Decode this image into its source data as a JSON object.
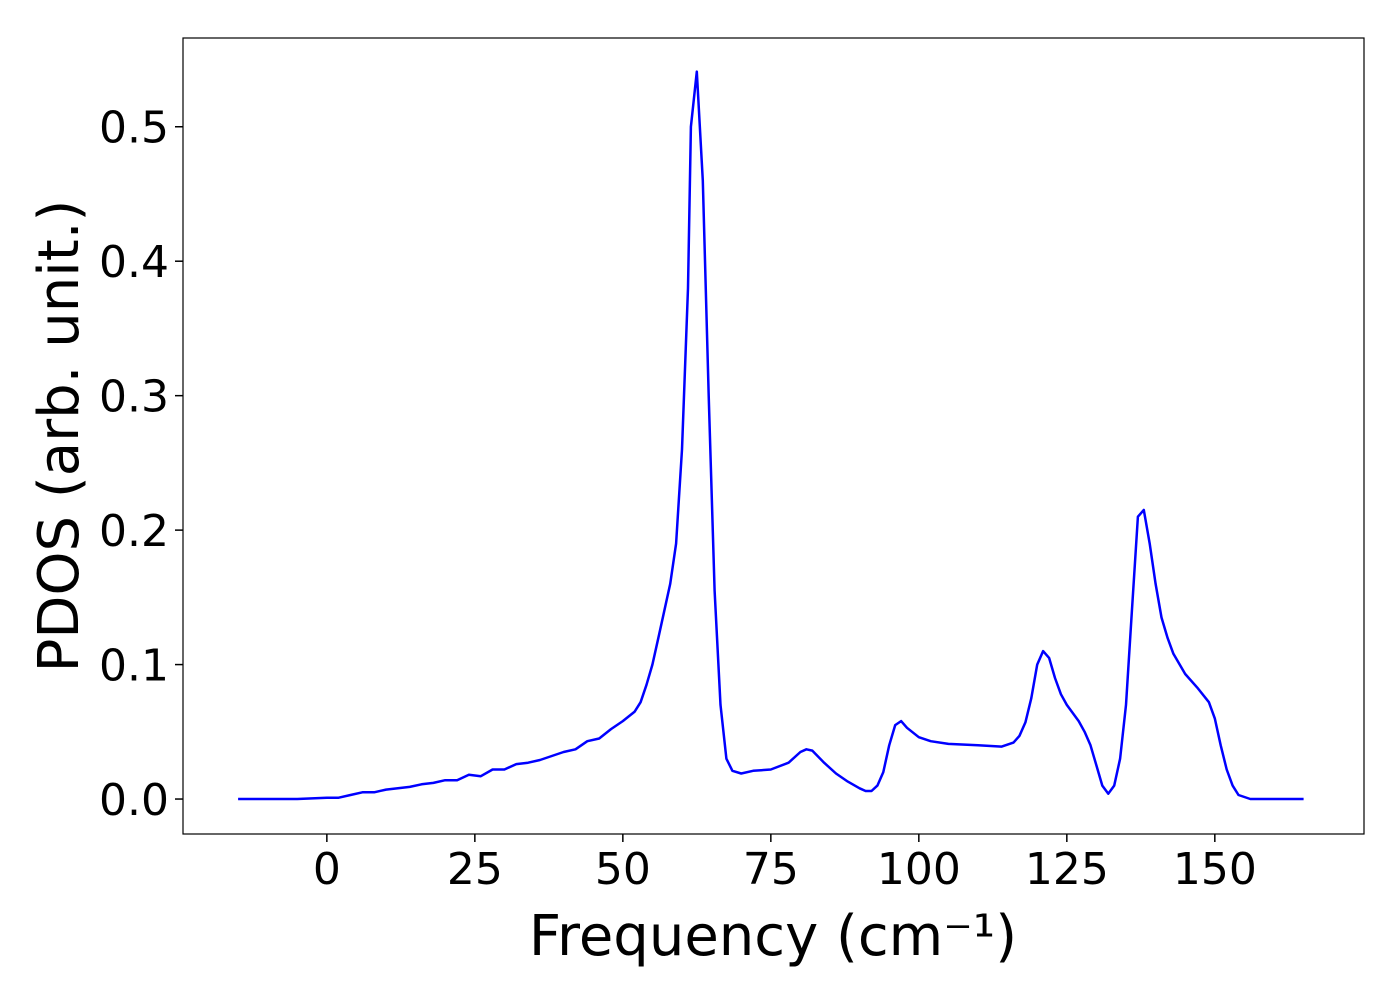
{
  "chart_data": {
    "type": "line",
    "xlabel": "Frequency (cm⁻¹)",
    "ylabel": "PDOS (arb. unit.)",
    "x": [
      -15,
      -5,
      0,
      2,
      4,
      6,
      8,
      10,
      12,
      14,
      16,
      18,
      20,
      22,
      24,
      26,
      28,
      30,
      32,
      34,
      36,
      38,
      40,
      42,
      44,
      46,
      48,
      50,
      52,
      53,
      54,
      55,
      56,
      57,
      58,
      59,
      60,
      61,
      61.5,
      62.5,
      63.5,
      64.5,
      65.5,
      66.5,
      67.5,
      68.5,
      70,
      72,
      75,
      78,
      80,
      81,
      82,
      84,
      86,
      88,
      90,
      91,
      92,
      93,
      94,
      95,
      96,
      97,
      98,
      100,
      102,
      105,
      110,
      114,
      116,
      117,
      118,
      119,
      120,
      121,
      122,
      123,
      124,
      125,
      127,
      128,
      129,
      130,
      131,
      132,
      133,
      134,
      135,
      136,
      137,
      138,
      139,
      140,
      141,
      142,
      143,
      145,
      147,
      149,
      150,
      151,
      152,
      153,
      154,
      156,
      165
    ],
    "series": [
      {
        "color": "#0000ff",
        "values": [
          0,
          0,
          0.001,
          0.001,
          0.003,
          0.005,
          0.005,
          0.007,
          0.008,
          0.009,
          0.011,
          0.012,
          0.014,
          0.014,
          0.018,
          0.017,
          0.022,
          0.022,
          0.026,
          0.027,
          0.029,
          0.032,
          0.035,
          0.037,
          0.043,
          0.045,
          0.052,
          0.058,
          0.065,
          0.072,
          0.085,
          0.1,
          0.12,
          0.14,
          0.16,
          0.19,
          0.26,
          0.38,
          0.5,
          0.541,
          0.46,
          0.3,
          0.155,
          0.07,
          0.03,
          0.021,
          0.019,
          0.021,
          0.022,
          0.027,
          0.035,
          0.037,
          0.036,
          0.027,
          0.019,
          0.013,
          0.008,
          0.006,
          0.006,
          0.01,
          0.02,
          0.04,
          0.055,
          0.058,
          0.053,
          0.046,
          0.043,
          0.041,
          0.04,
          0.039,
          0.042,
          0.047,
          0.057,
          0.075,
          0.1,
          0.11,
          0.105,
          0.09,
          0.078,
          0.07,
          0.058,
          0.05,
          0.04,
          0.025,
          0.01,
          0.004,
          0.01,
          0.03,
          0.07,
          0.14,
          0.21,
          0.215,
          0.19,
          0.16,
          0.135,
          0.12,
          0.108,
          0.093,
          0.083,
          0.072,
          0.06,
          0.04,
          0.022,
          0.01,
          0.003,
          0,
          0
        ]
      }
    ],
    "xlim": [
      -24.3,
      175.2
    ],
    "ylim": [
      -0.026,
      0.566
    ],
    "xticks": [
      0,
      25,
      50,
      75,
      100,
      125,
      150
    ],
    "yticks": [
      {
        "value": 0,
        "label": "0.0"
      },
      0.1,
      0.2,
      0.3,
      0.4,
      0.5
    ]
  }
}
